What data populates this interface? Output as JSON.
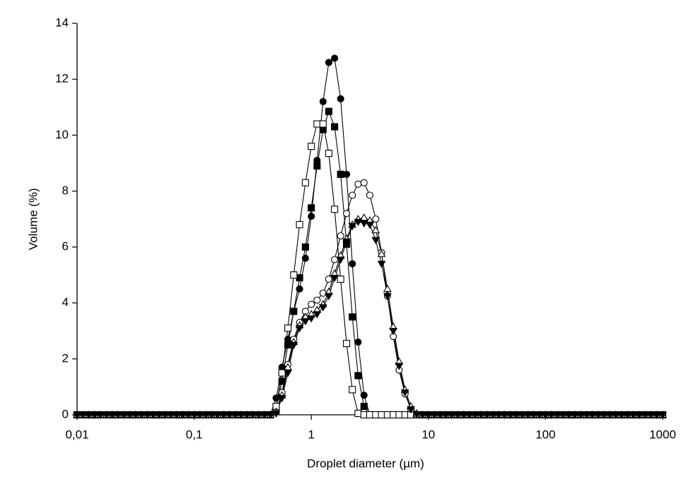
{
  "chart_data": {
    "type": "line",
    "x_label": "Droplet diameter (µm)",
    "y_label": "Volume (%)",
    "xscale": "log",
    "xlim": [
      0.01,
      1000
    ],
    "xticks": [
      {
        "value": 0.01,
        "label": "0,01"
      },
      {
        "value": 0.1,
        "label": "0,1"
      },
      1,
      10,
      100,
      1000
    ],
    "ylim": [
      0,
      14
    ],
    "yticks": [
      0,
      2,
      4,
      6,
      8,
      10,
      12,
      14
    ],
    "x": [
      0.01,
      0.0112,
      0.0126,
      0.0141,
      0.0158,
      0.0178,
      0.02,
      0.0224,
      0.0251,
      0.0282,
      0.0316,
      0.0355,
      0.0398,
      0.0447,
      0.0501,
      0.0562,
      0.0631,
      0.0708,
      0.0794,
      0.0891,
      0.1,
      0.112,
      0.126,
      0.141,
      0.158,
      0.178,
      0.2,
      0.224,
      0.251,
      0.282,
      0.316,
      0.355,
      0.398,
      0.447,
      0.501,
      0.562,
      0.631,
      0.708,
      0.794,
      0.891,
      1,
      1.12,
      1.26,
      1.41,
      1.58,
      1.78,
      2,
      2.24,
      2.51,
      2.82,
      3.16,
      3.55,
      3.98,
      4.47,
      5.01,
      5.62,
      6.31,
      7.08,
      7.94,
      8.91,
      10,
      11.2,
      12.6,
      14.1,
      15.8,
      17.8,
      20,
      22.4,
      25.1,
      28.2,
      31.6,
      35.5,
      39.8,
      44.7,
      50.1,
      56.2,
      63.1,
      70.8,
      79.4,
      89.1,
      100,
      112,
      126,
      141,
      158,
      178,
      200,
      224,
      251,
      282,
      316,
      355,
      398,
      447,
      501,
      562,
      631,
      708,
      794,
      891,
      1000
    ],
    "series": [
      {
        "color": "#000000",
        "marker": "circle",
        "filled": true,
        "values": [
          0,
          0,
          0,
          0,
          0,
          0,
          0,
          0,
          0,
          0,
          0,
          0,
          0,
          0,
          0,
          0,
          0,
          0,
          0,
          0,
          0,
          0,
          0,
          0,
          0,
          0,
          0,
          0,
          0,
          0,
          0,
          0,
          0,
          0,
          0.6,
          1.7,
          2.7,
          3.7,
          4.5,
          5.6,
          7.1,
          9.1,
          11.2,
          12.6,
          12.75,
          11.3,
          8.6,
          5.4,
          2.6,
          0.7,
          0,
          0,
          0,
          0,
          0,
          0,
          0,
          0,
          0,
          0,
          0,
          0,
          0,
          0,
          0,
          0,
          0,
          0,
          0,
          0,
          0,
          0,
          0,
          0,
          0,
          0,
          0,
          0,
          0,
          0,
          0,
          0,
          0,
          0,
          0,
          0,
          0,
          0,
          0,
          0,
          0,
          0,
          0,
          0,
          0,
          0,
          0,
          0,
          0,
          0,
          0
        ]
      },
      {
        "color": "#000000",
        "marker": "square",
        "filled": true,
        "values": [
          0,
          0,
          0,
          0,
          0,
          0,
          0,
          0,
          0,
          0,
          0,
          0,
          0,
          0,
          0,
          0,
          0,
          0,
          0,
          0,
          0,
          0,
          0,
          0,
          0,
          0,
          0,
          0,
          0,
          0,
          0,
          0,
          0,
          0,
          0.3,
          1.2,
          2.5,
          3.7,
          4.9,
          6,
          7.4,
          8.9,
          10.2,
          10.85,
          10.3,
          8.6,
          6.1,
          3.5,
          1.4,
          0.3,
          0,
          0,
          0,
          0,
          0,
          0,
          0,
          0,
          0,
          0,
          0,
          0,
          0,
          0,
          0,
          0,
          0,
          0,
          0,
          0,
          0,
          0,
          0,
          0,
          0,
          0,
          0,
          0,
          0,
          0,
          0,
          0,
          0,
          0,
          0,
          0,
          0,
          0,
          0,
          0,
          0,
          0,
          0,
          0,
          0,
          0,
          0,
          0,
          0,
          0,
          0
        ]
      },
      {
        "color": "#000000",
        "marker": "square",
        "filled": false,
        "values": [
          0,
          0,
          0,
          0,
          0,
          0,
          0,
          0,
          0,
          0,
          0,
          0,
          0,
          0,
          0,
          0,
          0,
          0,
          0,
          0,
          0,
          0,
          0,
          0,
          0,
          0,
          0,
          0,
          0,
          0,
          0,
          0,
          0,
          0,
          0.3,
          1.5,
          3.1,
          5,
          6.8,
          8.3,
          9.6,
          10.4,
          10.4,
          9.35,
          7.35,
          4.85,
          2.55,
          0.9,
          0.05,
          0,
          0,
          0,
          0,
          0,
          0,
          0,
          0,
          0,
          0,
          0,
          0,
          0,
          0,
          0,
          0,
          0,
          0,
          0,
          0,
          0,
          0,
          0,
          0,
          0,
          0,
          0,
          0,
          0,
          0,
          0,
          0,
          0,
          0,
          0,
          0,
          0,
          0,
          0,
          0,
          0,
          0,
          0,
          0,
          0,
          0,
          0,
          0,
          0,
          0,
          0,
          0
        ]
      },
      {
        "color": "#000000",
        "marker": "circle",
        "filled": false,
        "values": [
          0,
          0,
          0,
          0,
          0,
          0,
          0,
          0,
          0,
          0,
          0,
          0,
          0,
          0,
          0,
          0,
          0,
          0,
          0,
          0,
          0,
          0,
          0,
          0,
          0,
          0,
          0,
          0,
          0,
          0,
          0,
          0,
          0,
          0,
          0.1,
          0.8,
          1.8,
          2.7,
          3.3,
          3.7,
          3.95,
          4.1,
          4.35,
          4.85,
          5.55,
          6.4,
          7.2,
          7.85,
          8.25,
          8.3,
          7.85,
          7,
          5.8,
          4.25,
          2.8,
          1.6,
          0.75,
          0.2,
          0,
          0,
          0,
          0,
          0,
          0,
          0,
          0,
          0,
          0,
          0,
          0,
          0,
          0,
          0,
          0,
          0,
          0,
          0,
          0,
          0,
          0,
          0,
          0,
          0,
          0,
          0,
          0,
          0,
          0,
          0,
          0,
          0,
          0,
          0,
          0,
          0,
          0,
          0,
          0,
          0,
          0,
          0
        ]
      },
      {
        "color": "#000000",
        "marker": "triangle-up",
        "filled": false,
        "values": [
          0,
          0,
          0,
          0,
          0,
          0,
          0,
          0,
          0,
          0,
          0,
          0,
          0,
          0,
          0,
          0,
          0,
          0,
          0,
          0,
          0,
          0,
          0,
          0,
          0,
          0,
          0,
          0,
          0,
          0,
          0,
          0,
          0,
          0,
          0.1,
          0.7,
          1.7,
          2.6,
          3.2,
          3.5,
          3.6,
          3.75,
          3.95,
          4.4,
          5.05,
          5.7,
          6.3,
          6.8,
          7,
          7.05,
          6.95,
          6.6,
          5.75,
          4.5,
          3.15,
          1.9,
          0.9,
          0.3,
          0.05,
          0,
          0,
          0,
          0,
          0,
          0,
          0,
          0,
          0,
          0,
          0,
          0,
          0,
          0,
          0,
          0,
          0,
          0,
          0,
          0,
          0,
          0,
          0,
          0,
          0,
          0,
          0,
          0,
          0,
          0,
          0,
          0,
          0,
          0,
          0,
          0,
          0,
          0,
          0,
          0,
          0,
          0
        ]
      },
      {
        "color": "#000000",
        "marker": "triangle-down",
        "filled": true,
        "values": [
          0,
          0,
          0,
          0,
          0,
          0,
          0,
          0,
          0,
          0,
          0,
          0,
          0,
          0,
          0,
          0,
          0,
          0,
          0,
          0,
          0,
          0,
          0,
          0,
          0,
          0,
          0,
          0,
          0,
          0,
          0,
          0,
          0,
          0,
          0.05,
          0.6,
          1.5,
          2.5,
          3.1,
          3.35,
          3.45,
          3.6,
          3.85,
          4.25,
          4.9,
          5.55,
          6.2,
          6.75,
          6.9,
          6.85,
          6.8,
          6.25,
          5.4,
          4.25,
          3,
          1.75,
          0.8,
          0.2,
          0.02,
          0,
          0,
          0,
          0,
          0,
          0,
          0,
          0,
          0,
          0,
          0,
          0,
          0,
          0,
          0,
          0,
          0,
          0,
          0,
          0,
          0,
          0,
          0,
          0,
          0,
          0,
          0,
          0,
          0,
          0,
          0,
          0,
          0,
          0,
          0,
          0,
          0,
          0,
          0,
          0,
          0,
          0
        ]
      }
    ]
  }
}
